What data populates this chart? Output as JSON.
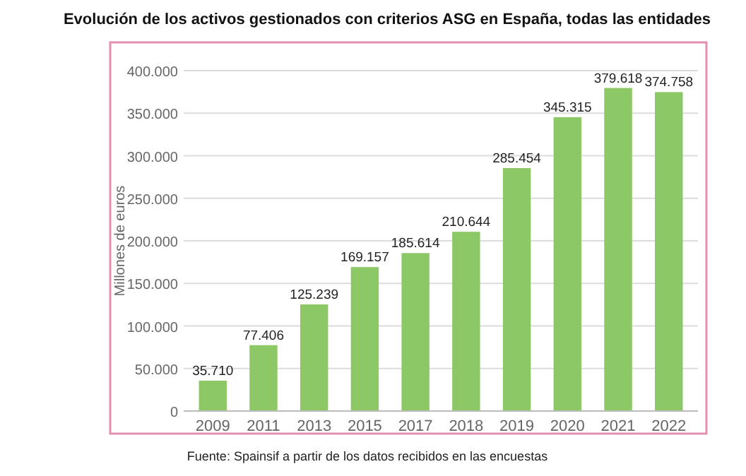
{
  "chart_data": {
    "type": "bar",
    "title": "Evolución  de los activos gestionados  con criterios ASG en España, todas  las entidades",
    "ylabel": "Millones de euros",
    "categories": [
      "2009",
      "2011",
      "2013",
      "2015",
      "2017",
      "2018",
      "2019",
      "2020",
      "2021",
      "2022"
    ],
    "values": [
      35710,
      77406,
      125239,
      169157,
      185614,
      210644,
      285454,
      345315,
      379618,
      374758
    ],
    "value_labels": [
      "35.710",
      "77.406",
      "125.239",
      "169.157",
      "185.614",
      "210.644",
      "285.454",
      "345.315",
      "379.618",
      "374.758"
    ],
    "color": "#8cc865",
    "ylim": [
      0,
      400000
    ],
    "yticks": [
      {
        "value": 0,
        "label": "0"
      },
      {
        "value": 50000,
        "label": "50.000"
      },
      {
        "value": 100000,
        "label": "100.000"
      },
      {
        "value": 150000,
        "label": "150.000"
      },
      {
        "value": 200000,
        "label": "200.000"
      },
      {
        "value": 250000,
        "label": "250.000"
      },
      {
        "value": 300000,
        "label": "300.000"
      },
      {
        "value": 350000,
        "label": "350.000"
      },
      {
        "value": 400000,
        "label": "400.000"
      }
    ],
    "grid": "y",
    "annotations": [
      "Fuente: Spainsif a partir de los datos recibidos en las encuestas"
    ]
  }
}
